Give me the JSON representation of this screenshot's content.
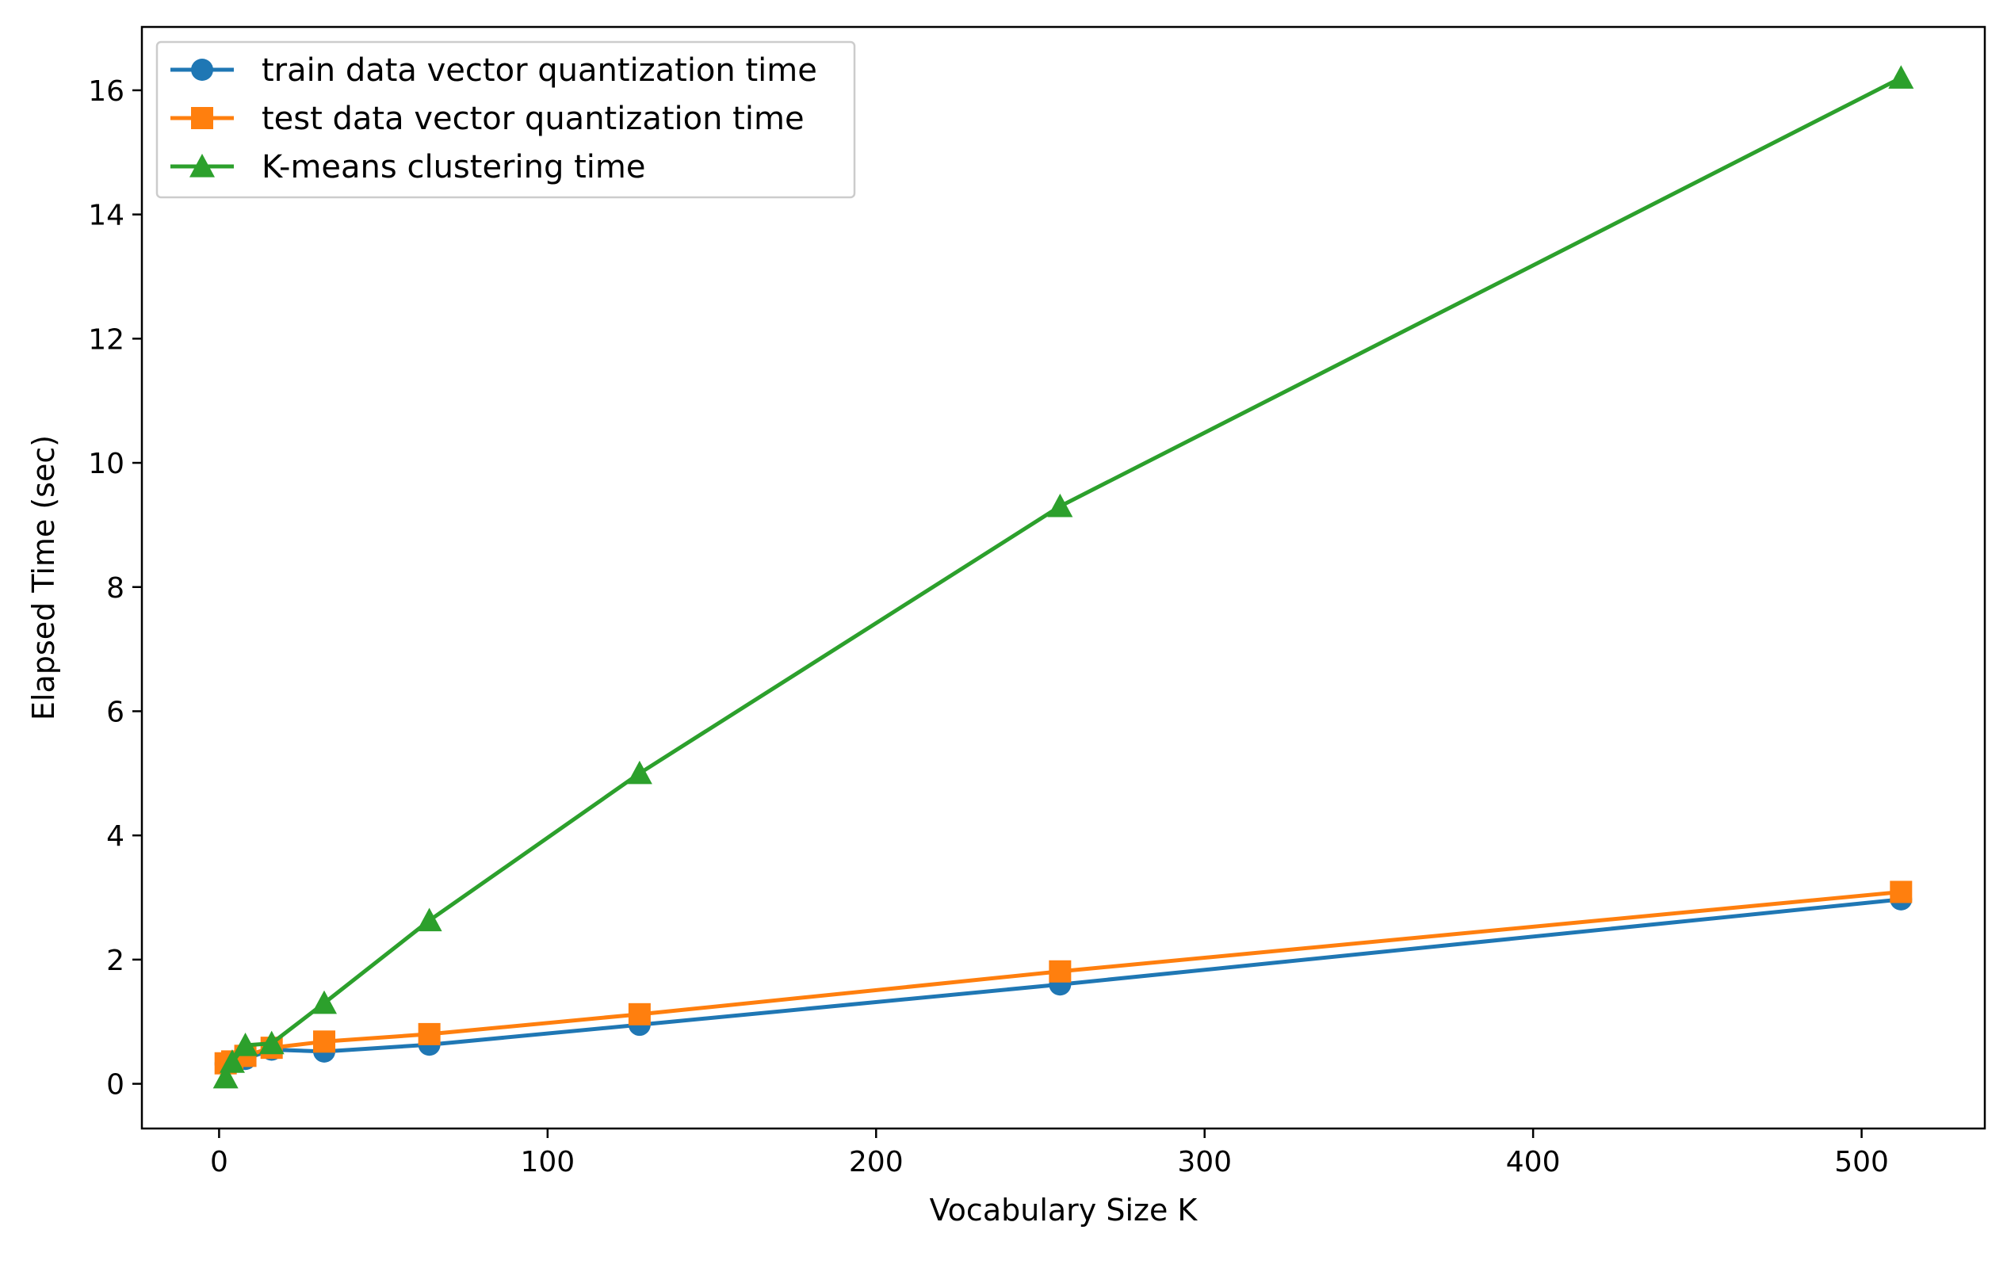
{
  "chart_data": {
    "type": "line",
    "title": "",
    "xlabel": "Vocabulary Size K",
    "ylabel": "Elapsed Time (sec)",
    "xlim": [
      -23.5,
      537.5
    ],
    "ylim": [
      -0.72,
      17.02
    ],
    "xticks": [
      0,
      100,
      200,
      300,
      400,
      500
    ],
    "yticks": [
      0,
      2,
      4,
      6,
      8,
      10,
      12,
      14,
      16
    ],
    "grid": false,
    "legend_position": "upper-left",
    "x": [
      2,
      4,
      8,
      16,
      32,
      64,
      128,
      256,
      512
    ],
    "series": [
      {
        "name": "train data vector quantization time",
        "color": "#1f77b4",
        "marker": "circle",
        "values": [
          0.32,
          0.35,
          0.4,
          0.55,
          0.52,
          0.63,
          0.95,
          1.6,
          2.97
        ]
      },
      {
        "name": "test data vector quantization time",
        "color": "#ff7f0e",
        "marker": "square",
        "values": [
          0.33,
          0.36,
          0.45,
          0.58,
          0.68,
          0.8,
          1.12,
          1.81,
          3.09
        ]
      },
      {
        "name": "K-means clustering time",
        "color": "#2ca02c",
        "marker": "triangle",
        "values": [
          0.1,
          0.35,
          0.62,
          0.65,
          1.3,
          2.63,
          5.0,
          9.3,
          16.2
        ]
      }
    ]
  }
}
